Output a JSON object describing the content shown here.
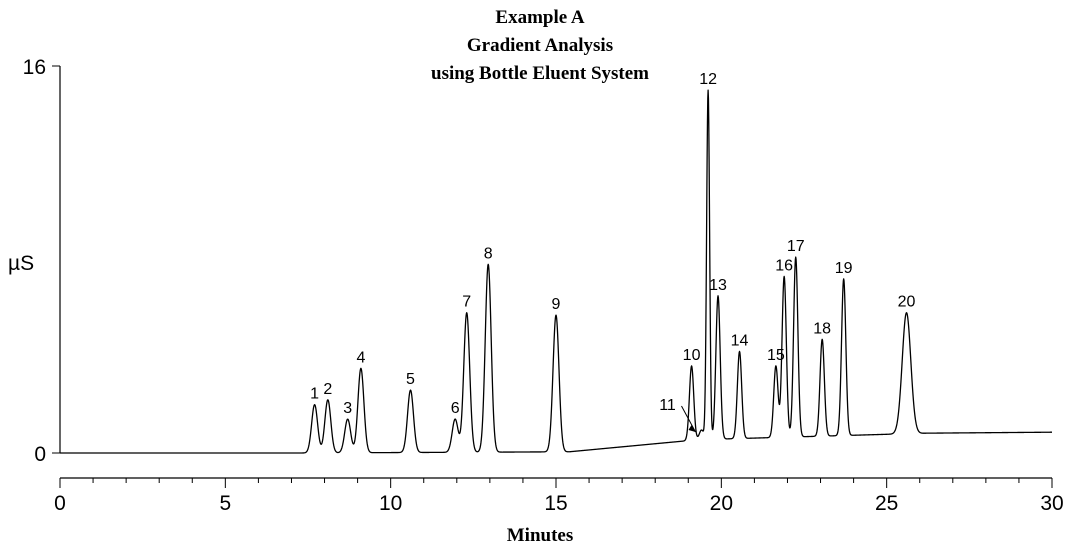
{
  "chart_data": {
    "type": "line",
    "title": [
      "Example A",
      "Gradient Analysis",
      "using Bottle Eluent System"
    ],
    "xlabel": "Minutes",
    "ylabel": "µS",
    "xlim": [
      0,
      30
    ],
    "ylim": [
      0,
      16
    ],
    "x_ticks": [
      0,
      5,
      10,
      15,
      20,
      25,
      30
    ],
    "y_ticks": [
      0,
      16
    ],
    "grid": false,
    "baseline": [
      {
        "start": 0,
        "end": 7.2,
        "y0": 0.0,
        "y1": 0.0
      },
      {
        "start": 7.2,
        "end": 15.4,
        "y0": 0.0,
        "y1": 0.05
      },
      {
        "start": 15.4,
        "end": 19.3,
        "y0": 0.05,
        "y1": 0.55
      },
      {
        "start": 19.3,
        "end": 26.2,
        "y0": 0.55,
        "y1": 0.82
      },
      {
        "start": 26.2,
        "end": 30,
        "y0": 0.82,
        "y1": 0.86
      }
    ],
    "peaks": [
      {
        "label": "1",
        "x": 7.7,
        "y": 2.0
      },
      {
        "label": "2",
        "x": 8.1,
        "y": 2.2
      },
      {
        "label": "3",
        "x": 8.7,
        "y": 1.4
      },
      {
        "label": "4",
        "x": 9.1,
        "y": 3.5
      },
      {
        "label": "5",
        "x": 10.6,
        "y": 2.6
      },
      {
        "label": "6",
        "x": 11.95,
        "y": 1.4
      },
      {
        "label": "7",
        "x": 12.3,
        "y": 5.8
      },
      {
        "label": "8",
        "x": 12.95,
        "y": 7.8
      },
      {
        "label": "9",
        "x": 15.0,
        "y": 5.7
      },
      {
        "label": "10",
        "x": 19.1,
        "y": 3.6
      },
      {
        "label": "11",
        "x": 19.4,
        "y": 0.95
      },
      {
        "label": "12",
        "x": 19.6,
        "y": 15.0
      },
      {
        "label": "13",
        "x": 19.9,
        "y": 6.5
      },
      {
        "label": "14",
        "x": 20.55,
        "y": 4.2
      },
      {
        "label": "15",
        "x": 21.65,
        "y": 3.6
      },
      {
        "label": "16",
        "x": 21.9,
        "y": 7.3
      },
      {
        "label": "17",
        "x": 22.25,
        "y": 8.1
      },
      {
        "label": "18",
        "x": 23.05,
        "y": 4.7
      },
      {
        "label": "19",
        "x": 23.7,
        "y": 7.2
      },
      {
        "label": "20",
        "x": 25.6,
        "y": 5.8
      }
    ]
  }
}
